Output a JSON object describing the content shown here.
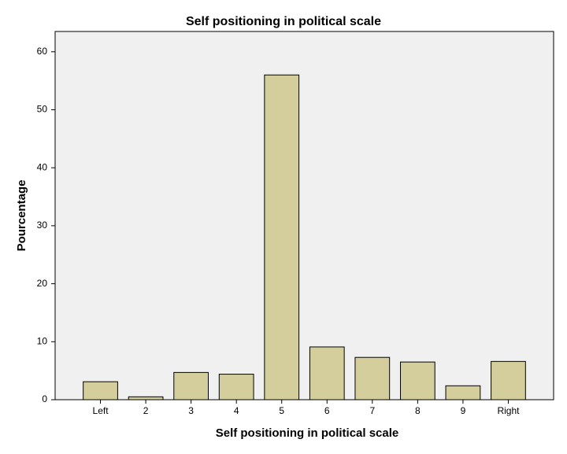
{
  "chart_data": {
    "type": "bar",
    "title": "Self positioning in political scale",
    "x_label": "Self positioning in political scale",
    "y_label": "Pourcentage",
    "categories": [
      "Left",
      "2",
      "3",
      "4",
      "5",
      "6",
      "7",
      "8",
      "9",
      "Right"
    ],
    "values": [
      3.1,
      0.5,
      4.7,
      4.4,
      56,
      9.1,
      7.3,
      6.5,
      2.4,
      6.6
    ],
    "color": "#d3ce9c",
    "ylim": [
      0,
      63.5
    ],
    "yticks": [
      0,
      10,
      20,
      30,
      40,
      50,
      60
    ],
    "grid": false
  }
}
